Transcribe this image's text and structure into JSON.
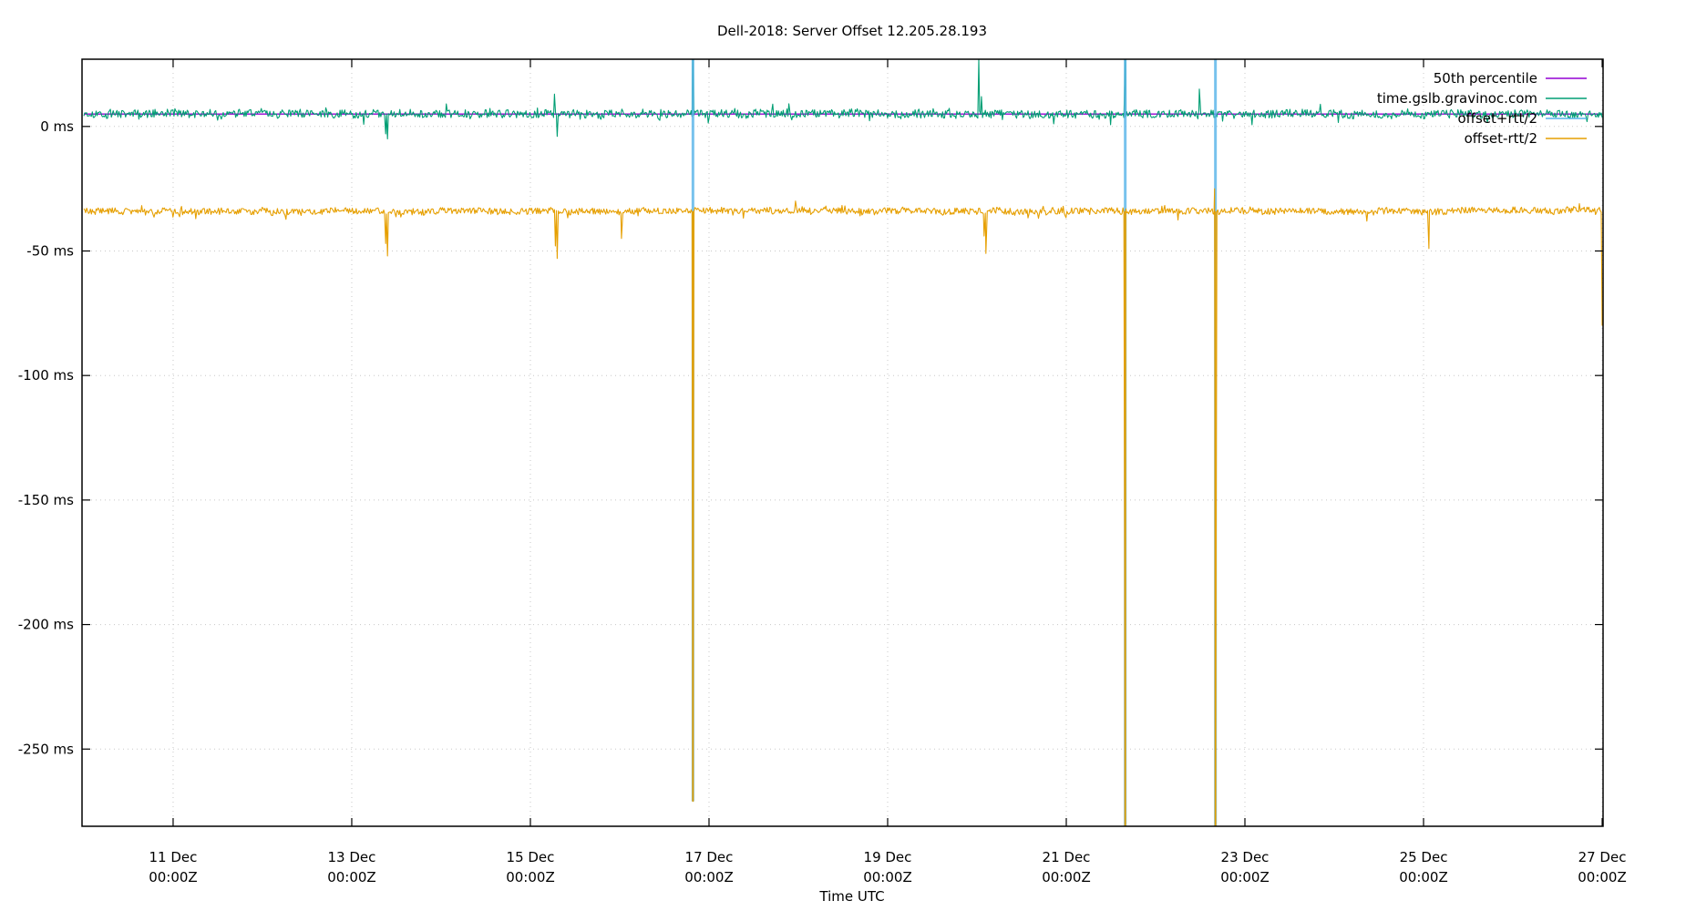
{
  "chart_data": {
    "type": "line",
    "title": "Dell-2018: Server Offset 12.205.28.193",
    "xlabel": "Time UTC",
    "ylabel": "",
    "ylim": [
      -281,
      27
    ],
    "xlim_days": [
      -1.02,
      16.01
    ],
    "x_origin": "11 Dec 00:00Z",
    "grid": true,
    "legend_position": "top-right inside",
    "y_ticks": [
      {
        "value": 0,
        "label": "0 ms"
      },
      {
        "value": -50,
        "label": "-50 ms"
      },
      {
        "value": -100,
        "label": "-100 ms"
      },
      {
        "value": -150,
        "label": "-150 ms"
      },
      {
        "value": -200,
        "label": "-200 ms"
      },
      {
        "value": -250,
        "label": "-250 ms"
      }
    ],
    "x_ticks": [
      {
        "day": 0,
        "label1": "11 Dec",
        "label2": "00:00Z"
      },
      {
        "day": 2,
        "label1": "13 Dec",
        "label2": "00:00Z"
      },
      {
        "day": 4,
        "label1": "15 Dec",
        "label2": "00:00Z"
      },
      {
        "day": 6,
        "label1": "17 Dec",
        "label2": "00:00Z"
      },
      {
        "day": 8,
        "label1": "19 Dec",
        "label2": "00:00Z"
      },
      {
        "day": 10,
        "label1": "21 Dec",
        "label2": "00:00Z"
      },
      {
        "day": 12,
        "label1": "23 Dec",
        "label2": "00:00Z"
      },
      {
        "day": 14,
        "label1": "25 Dec",
        "label2": "00:00Z"
      },
      {
        "day": 16,
        "label1": "27 Dec",
        "label2": "00:00Z"
      }
    ],
    "series": [
      {
        "name": "50th percentile",
        "color": "#9400d3",
        "kind": "constant",
        "value_ms": 5
      },
      {
        "name": "time.gslb.gravinoc.com",
        "color": "#009e73",
        "kind": "noisy",
        "baseline_ms": 5,
        "noise_ms": 1.6,
        "seed": 11,
        "events": [
          {
            "day": 2.38,
            "value_ms": -3
          },
          {
            "day": 2.4,
            "value_ms": -5
          },
          {
            "day": 4.3,
            "value_ms": -4
          },
          {
            "day": 4.27,
            "value_ms": 13
          },
          {
            "day": 5.82,
            "value_ms": 30
          },
          {
            "day": 9.02,
            "value_ms": 27
          },
          {
            "day": 9.05,
            "value_ms": 12
          },
          {
            "day": 10.66,
            "value_ms": 30
          },
          {
            "day": 11.49,
            "value_ms": 15
          }
        ]
      },
      {
        "name": "offset+rtt/2",
        "color": "#56b4e9",
        "kind": "spikes",
        "baseline_ms": 5,
        "events": [
          {
            "day": 5.82,
            "from_ms": 27,
            "to_ms": -271
          },
          {
            "day": 10.66,
            "from_ms": 27,
            "to_ms": -281
          },
          {
            "day": 11.67,
            "from_ms": 27,
            "to_ms": -281
          }
        ]
      },
      {
        "name": "offset-rtt/2",
        "color": "#e69f00",
        "kind": "noisy",
        "baseline_ms": -34,
        "noise_ms": 1.3,
        "seed": 29,
        "events": [
          {
            "day": 2.38,
            "value_ms": -47
          },
          {
            "day": 2.4,
            "value_ms": -52
          },
          {
            "day": 4.3,
            "value_ms": -53
          },
          {
            "day": 4.28,
            "value_ms": -48
          },
          {
            "day": 5.02,
            "value_ms": -45
          },
          {
            "day": 5.82,
            "value_ms": -271
          },
          {
            "day": 9.1,
            "value_ms": -51
          },
          {
            "day": 9.08,
            "value_ms": -44
          },
          {
            "day": 10.66,
            "value_ms": -281
          },
          {
            "day": 11.67,
            "value_ms": -281
          },
          {
            "day": 11.66,
            "value_ms": -25
          },
          {
            "day": 14.06,
            "value_ms": -49
          },
          {
            "day": 16.0,
            "value_ms": -80
          }
        ]
      }
    ]
  },
  "legend": {
    "items": [
      {
        "label": "50th percentile",
        "color": "#9400d3"
      },
      {
        "label": "time.gslb.gravinoc.com",
        "color": "#009e73"
      },
      {
        "label": "offset+rtt/2",
        "color": "#56b4e9"
      },
      {
        "label": "offset-rtt/2",
        "color": "#e69f00"
      }
    ]
  }
}
